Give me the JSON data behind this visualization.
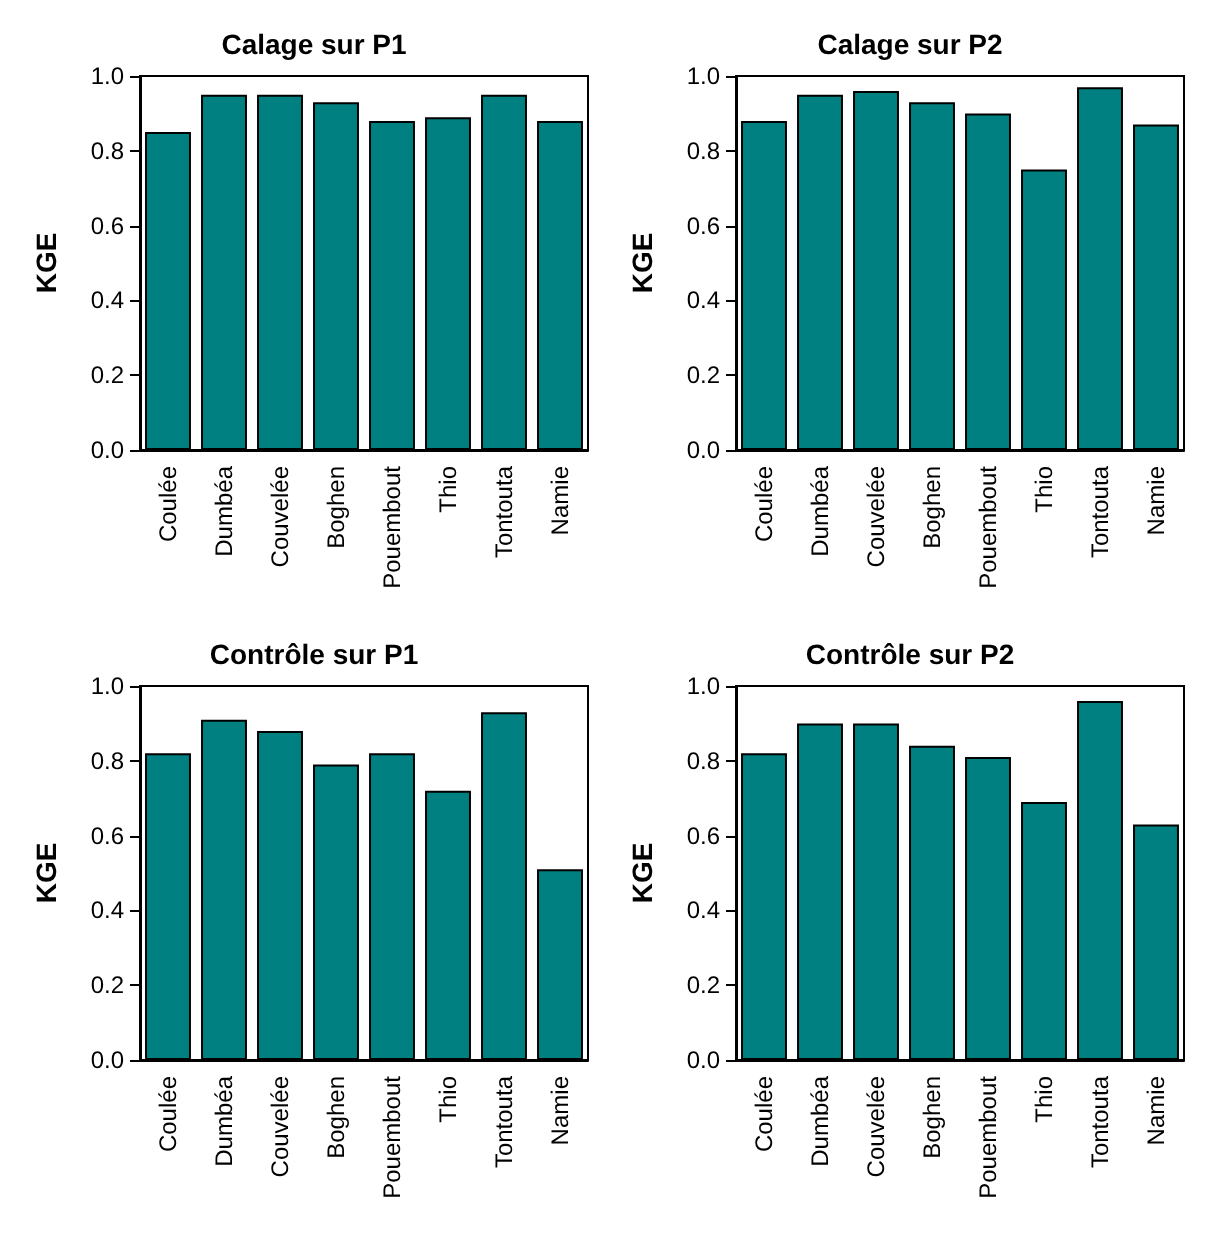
{
  "chart_data": [
    {
      "type": "bar",
      "title": "Calage sur P1",
      "ylabel": "KGE",
      "categories": [
        "Coulée",
        "Dumbéa",
        "Couvelée",
        "Boghen",
        "Pouembout",
        "Thio",
        "Tontouta",
        "Namie"
      ],
      "series": [
        {
          "color": "#008080",
          "values": [
            0.85,
            0.95,
            0.95,
            0.93,
            0.88,
            0.89,
            0.95,
            0.88
          ]
        }
      ],
      "ylim": [
        0,
        1
      ],
      "yticks": [
        {
          "value": 0,
          "label": "0.0"
        },
        {
          "value": 0.2,
          "label": "0.2"
        },
        {
          "value": 0.4,
          "label": "0.4"
        },
        {
          "value": 0.6,
          "label": "0.6"
        },
        {
          "value": 0.8,
          "label": "0.8"
        },
        {
          "value": 1,
          "label": "1.0"
        }
      ],
      "grid": false
    },
    {
      "type": "bar",
      "title": "Calage sur P2",
      "ylabel": "KGE",
      "categories": [
        "Coulée",
        "Dumbéa",
        "Couvelée",
        "Boghen",
        "Pouembout",
        "Thio",
        "Tontouta",
        "Namie"
      ],
      "series": [
        {
          "color": "#008080",
          "values": [
            0.88,
            0.95,
            0.96,
            0.93,
            0.9,
            0.75,
            0.97,
            0.87
          ]
        }
      ],
      "ylim": [
        0,
        1
      ],
      "yticks": [
        {
          "value": 0,
          "label": "0.0"
        },
        {
          "value": 0.2,
          "label": "0.2"
        },
        {
          "value": 0.4,
          "label": "0.4"
        },
        {
          "value": 0.6,
          "label": "0.6"
        },
        {
          "value": 0.8,
          "label": "0.8"
        },
        {
          "value": 1,
          "label": "1.0"
        }
      ],
      "grid": false
    },
    {
      "type": "bar",
      "title": "Contrôle sur P1",
      "ylabel": "KGE",
      "categories": [
        "Coulée",
        "Dumbéa",
        "Couvelée",
        "Boghen",
        "Pouembout",
        "Thio",
        "Tontouta",
        "Namie"
      ],
      "series": [
        {
          "color": "#008080",
          "values": [
            0.82,
            0.91,
            0.88,
            0.79,
            0.82,
            0.72,
            0.93,
            0.51
          ]
        }
      ],
      "ylim": [
        0,
        1
      ],
      "yticks": [
        {
          "value": 0,
          "label": "0.0"
        },
        {
          "value": 0.2,
          "label": "0.2"
        },
        {
          "value": 0.4,
          "label": "0.4"
        },
        {
          "value": 0.6,
          "label": "0.6"
        },
        {
          "value": 0.8,
          "label": "0.8"
        },
        {
          "value": 1,
          "label": "1.0"
        }
      ],
      "grid": false
    },
    {
      "type": "bar",
      "title": "Contrôle sur P2",
      "ylabel": "KGE",
      "categories": [
        "Coulée",
        "Dumbéa",
        "Couvelée",
        "Boghen",
        "Pouembout",
        "Thio",
        "Tontouta",
        "Namie"
      ],
      "series": [
        {
          "color": "#008080",
          "values": [
            0.82,
            0.9,
            0.9,
            0.84,
            0.81,
            0.69,
            0.96,
            0.63
          ]
        }
      ],
      "ylim": [
        0,
        1
      ],
      "yticks": [
        {
          "value": 0,
          "label": "0.0"
        },
        {
          "value": 0.2,
          "label": "0.2"
        },
        {
          "value": 0.4,
          "label": "0.4"
        },
        {
          "value": 0.6,
          "label": "0.6"
        },
        {
          "value": 0.8,
          "label": "0.8"
        },
        {
          "value": 1,
          "label": "1.0"
        }
      ],
      "grid": false
    }
  ]
}
